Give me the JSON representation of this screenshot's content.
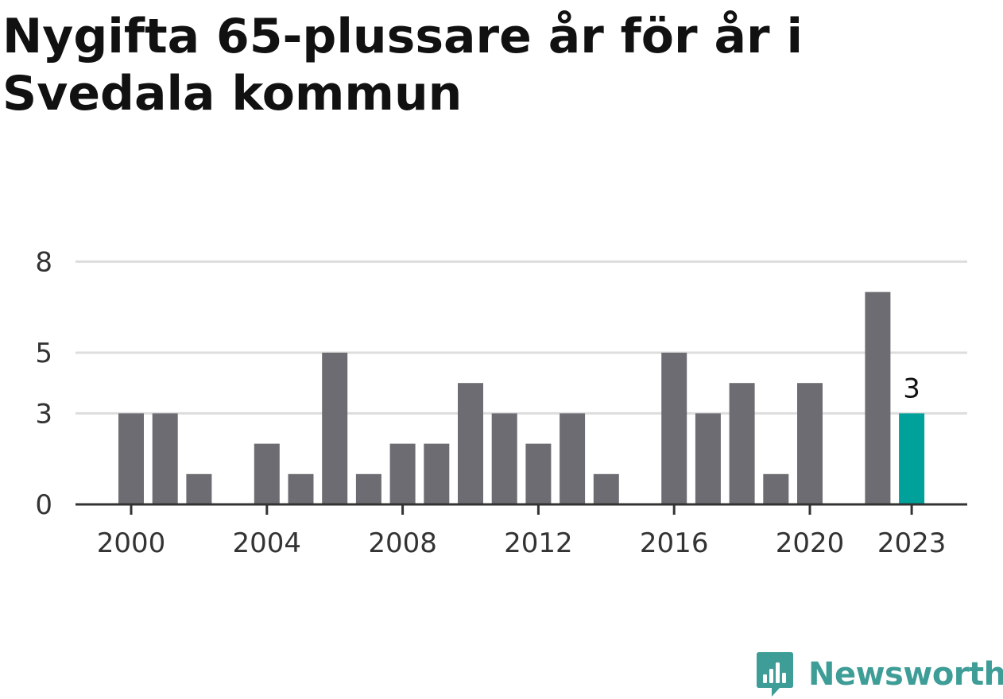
{
  "chart_data": {
    "type": "bar",
    "title": "Nygifta 65-plussare år för år i Svedala kommun",
    "xlabel": "",
    "ylabel": "",
    "categories": [
      "2000",
      "2001",
      "2002",
      "2003",
      "2004",
      "2005",
      "2006",
      "2007",
      "2008",
      "2009",
      "2010",
      "2011",
      "2012",
      "2013",
      "2014",
      "2015",
      "2016",
      "2017",
      "2018",
      "2019",
      "2020",
      "2021",
      "2022",
      "2023"
    ],
    "values": [
      3,
      3,
      1,
      0,
      2,
      1,
      5,
      1,
      2,
      2,
      4,
      3,
      2,
      3,
      1,
      0,
      5,
      3,
      4,
      1,
      4,
      0,
      7,
      3
    ],
    "ylim": [
      0,
      9
    ],
    "y_ticks": [
      {
        "value": 0,
        "label": "0"
      },
      {
        "value": 3,
        "label": "3"
      },
      {
        "value": 5,
        "label": "5"
      },
      {
        "value": 8,
        "label": "8"
      }
    ],
    "x_ticks": [
      "2000",
      "2004",
      "2008",
      "2012",
      "2016",
      "2020",
      "2023"
    ],
    "highlight": {
      "category": "2023",
      "label": "3"
    },
    "colors": {
      "bar": "#6d6c72",
      "highlight": "#00a19a",
      "grid": "#dddddd",
      "axis": "#333333"
    },
    "grid": true
  },
  "branding": {
    "name": "Newsworthy",
    "logo_icon": "newsworthy-logo-icon",
    "color": "#3e9d97"
  }
}
